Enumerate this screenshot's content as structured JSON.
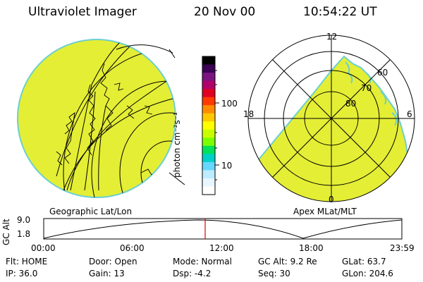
{
  "header": {
    "title": "Ultraviolet Imager",
    "date": "20 Nov 00",
    "time": "10:54:22 UT"
  },
  "left_panel": {
    "label": "Geographic Lat/Lon"
  },
  "colorbar": {
    "unit_label": "photon cm⁻²s⁻¹",
    "tick_labels": [
      "100",
      "10"
    ],
    "colors": [
      "#000000",
      "#3b0053",
      "#7a1480",
      "#b0006a",
      "#e00022",
      "#ff3a00",
      "#ff8c00",
      "#ffc800",
      "#ffff00",
      "#c8ff00",
      "#7cff00",
      "#00e25a",
      "#00d0c8",
      "#66d7ff",
      "#bdebff",
      "#e8f6ff",
      "#ffffff"
    ]
  },
  "right_panel": {
    "label": "Apex MLat/MLT",
    "mlt_labels": {
      "top": "12",
      "left": "18",
      "right": "6",
      "bottom": "0"
    },
    "lat_labels": [
      "60",
      "70",
      "80"
    ]
  },
  "altitude_plot": {
    "ylabel": "GC Alt",
    "yticks": [
      "9.0",
      "1.8"
    ],
    "xticks": [
      "00:00",
      "06:00",
      "12:00",
      "18:00",
      "23:59"
    ],
    "marker_color": "#e00000"
  },
  "status": {
    "row1": {
      "flt": "Flt: HOME",
      "door": "Door: Open",
      "mode": "Mode: Normal",
      "gcalt": "GC Alt: 9.2 Re",
      "glat": "GLat:  63.7"
    },
    "row2": {
      "ip": "IP: 36.0",
      "gain": "Gain: 13",
      "dsp": "Dsp:   -4.2",
      "seq": "Seq: 30",
      "glon": "GLon: 204.6"
    }
  }
}
